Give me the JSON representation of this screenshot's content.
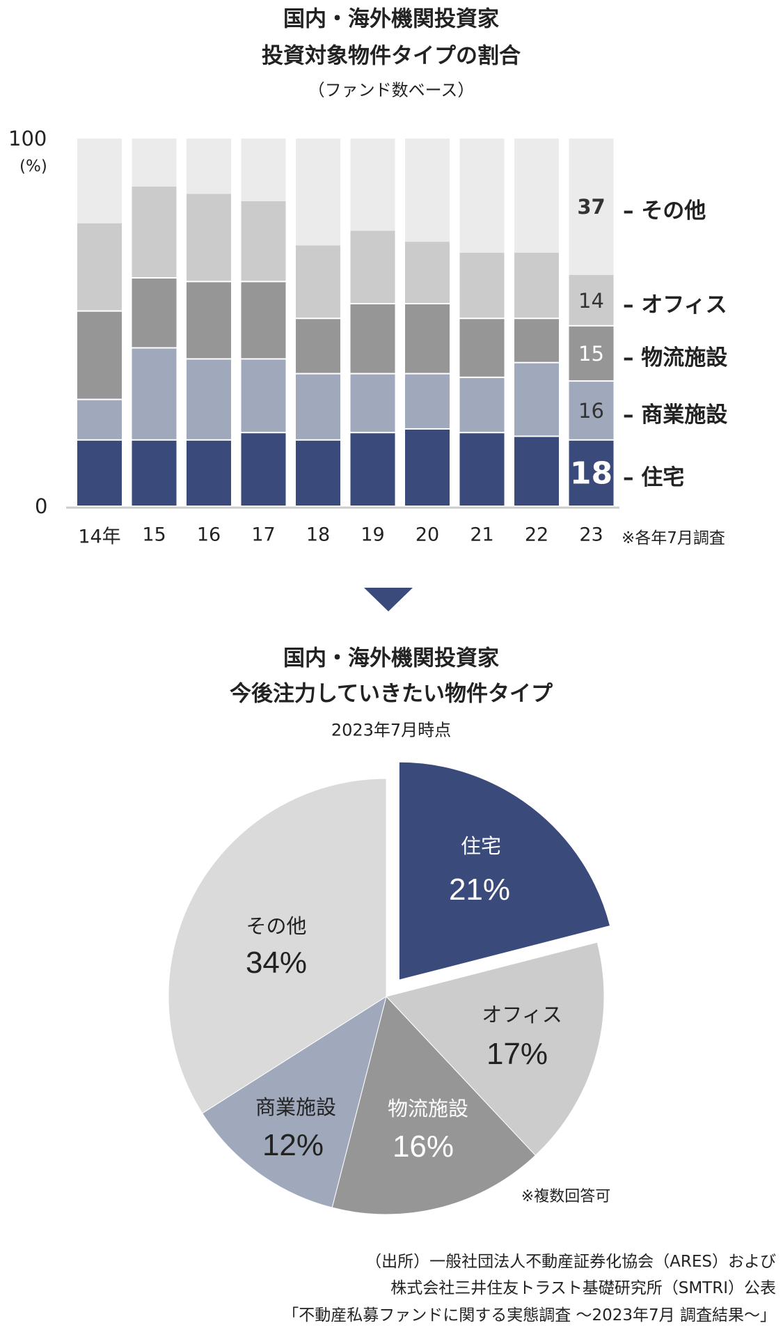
{
  "chart_data": [
    {
      "type": "bar",
      "stacked": true,
      "title_lines": [
        "国内・海外機関投資家",
        "投資対象物件タイプの割合"
      ],
      "subtitle": "（ファンド数ベース）",
      "ylabel": "(%)",
      "ylim": [
        0,
        100
      ],
      "y_ticks": [
        "0",
        "100"
      ],
      "categories": [
        "14年",
        "15",
        "16",
        "17",
        "18",
        "19",
        "20",
        "21",
        "22",
        "23"
      ],
      "note": "※各年7月調査",
      "series": [
        {
          "name": "住宅",
          "color": "#3a4a7a",
          "values": [
            18,
            18,
            18,
            20,
            18,
            20,
            21,
            20,
            19,
            18
          ]
        },
        {
          "name": "商業施設",
          "color": "#a0a9bc",
          "values": [
            11,
            25,
            22,
            20,
            18,
            16,
            15,
            15,
            20,
            16
          ]
        },
        {
          "name": "物流施設",
          "color": "#969696",
          "values": [
            24,
            19,
            21,
            21,
            15,
            19,
            19,
            16,
            12,
            15
          ]
        },
        {
          "name": "オフィス",
          "color": "#cbcbcb",
          "values": [
            24,
            25,
            24,
            22,
            20,
            20,
            17,
            18,
            18,
            14
          ]
        },
        {
          "name": "その他",
          "color": "#ebebeb",
          "values": [
            23,
            13,
            15,
            17,
            29,
            25,
            28,
            31,
            31,
            37
          ]
        }
      ],
      "last_labels": [
        "18",
        "16",
        "15",
        "14",
        "37"
      ],
      "legend_labels": [
        "– 住宅",
        "– 商業施設",
        "– 物流施設",
        "– オフィス",
        "– その他"
      ],
      "legend": "right"
    },
    {
      "type": "pie",
      "title_lines": [
        "国内・海外機関投資家",
        "今後注力していきたい物件タイプ"
      ],
      "subtitle": "2023年7月時点",
      "slices": [
        {
          "name": "住宅",
          "value": 21,
          "label": "21%",
          "color": "#3a4a7a",
          "exploded": true
        },
        {
          "name": "オフィス",
          "value": 17,
          "label": "17%",
          "color": "#cccccc"
        },
        {
          "name": "物流施設",
          "value": 16,
          "label": "16%",
          "color": "#969696"
        },
        {
          "name": "商業施設",
          "value": 12,
          "label": "12%",
          "color": "#a0a9bc"
        },
        {
          "name": "その他",
          "value": 34,
          "label": "34%",
          "color": "#dadada"
        }
      ],
      "note": "※複数回答可"
    }
  ],
  "source": [
    "（出所）一般社団法人不動産証券化協会（ARES）および",
    "株式会社三井住友トラスト基礎研究所（SMTRI）公表",
    "「不動産私募ファンドに関する実態調査 ～2023年7月 調査結果～」"
  ]
}
